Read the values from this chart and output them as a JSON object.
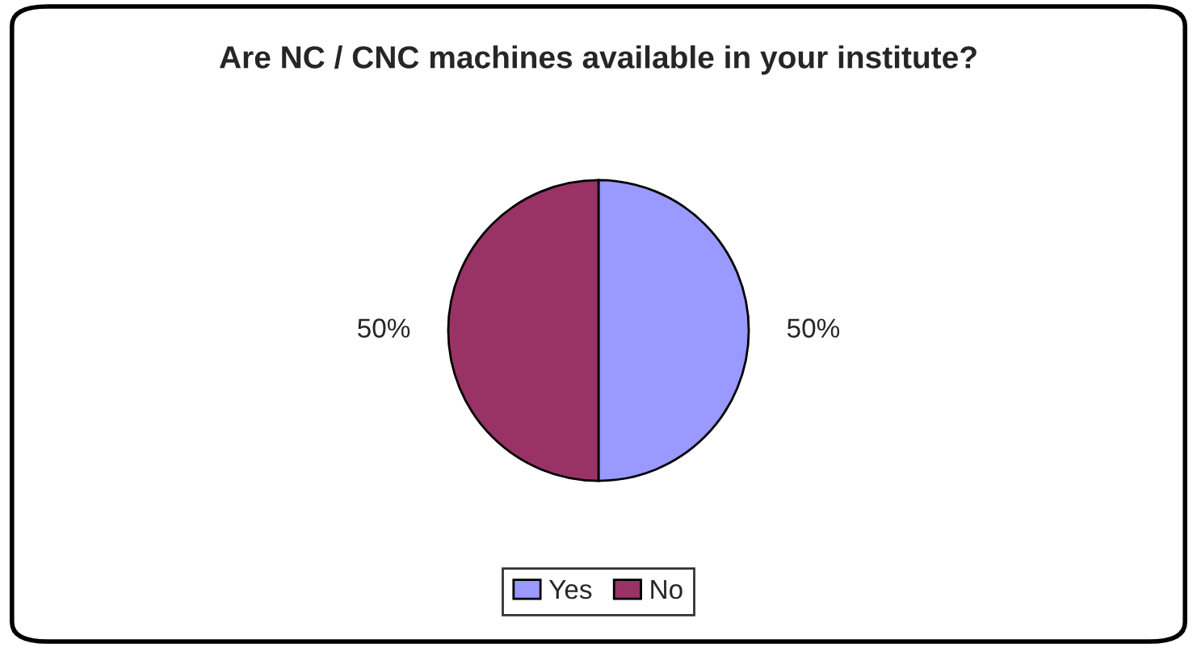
{
  "chart_data": {
    "type": "pie",
    "title": "Are NC / CNC machines available in your institute?",
    "categories": [
      "Yes",
      "No"
    ],
    "values": [
      50,
      50
    ],
    "colors": [
      "#9999ff",
      "#993366"
    ],
    "value_labels": [
      "50%",
      "50%"
    ],
    "legend": "bottom"
  }
}
